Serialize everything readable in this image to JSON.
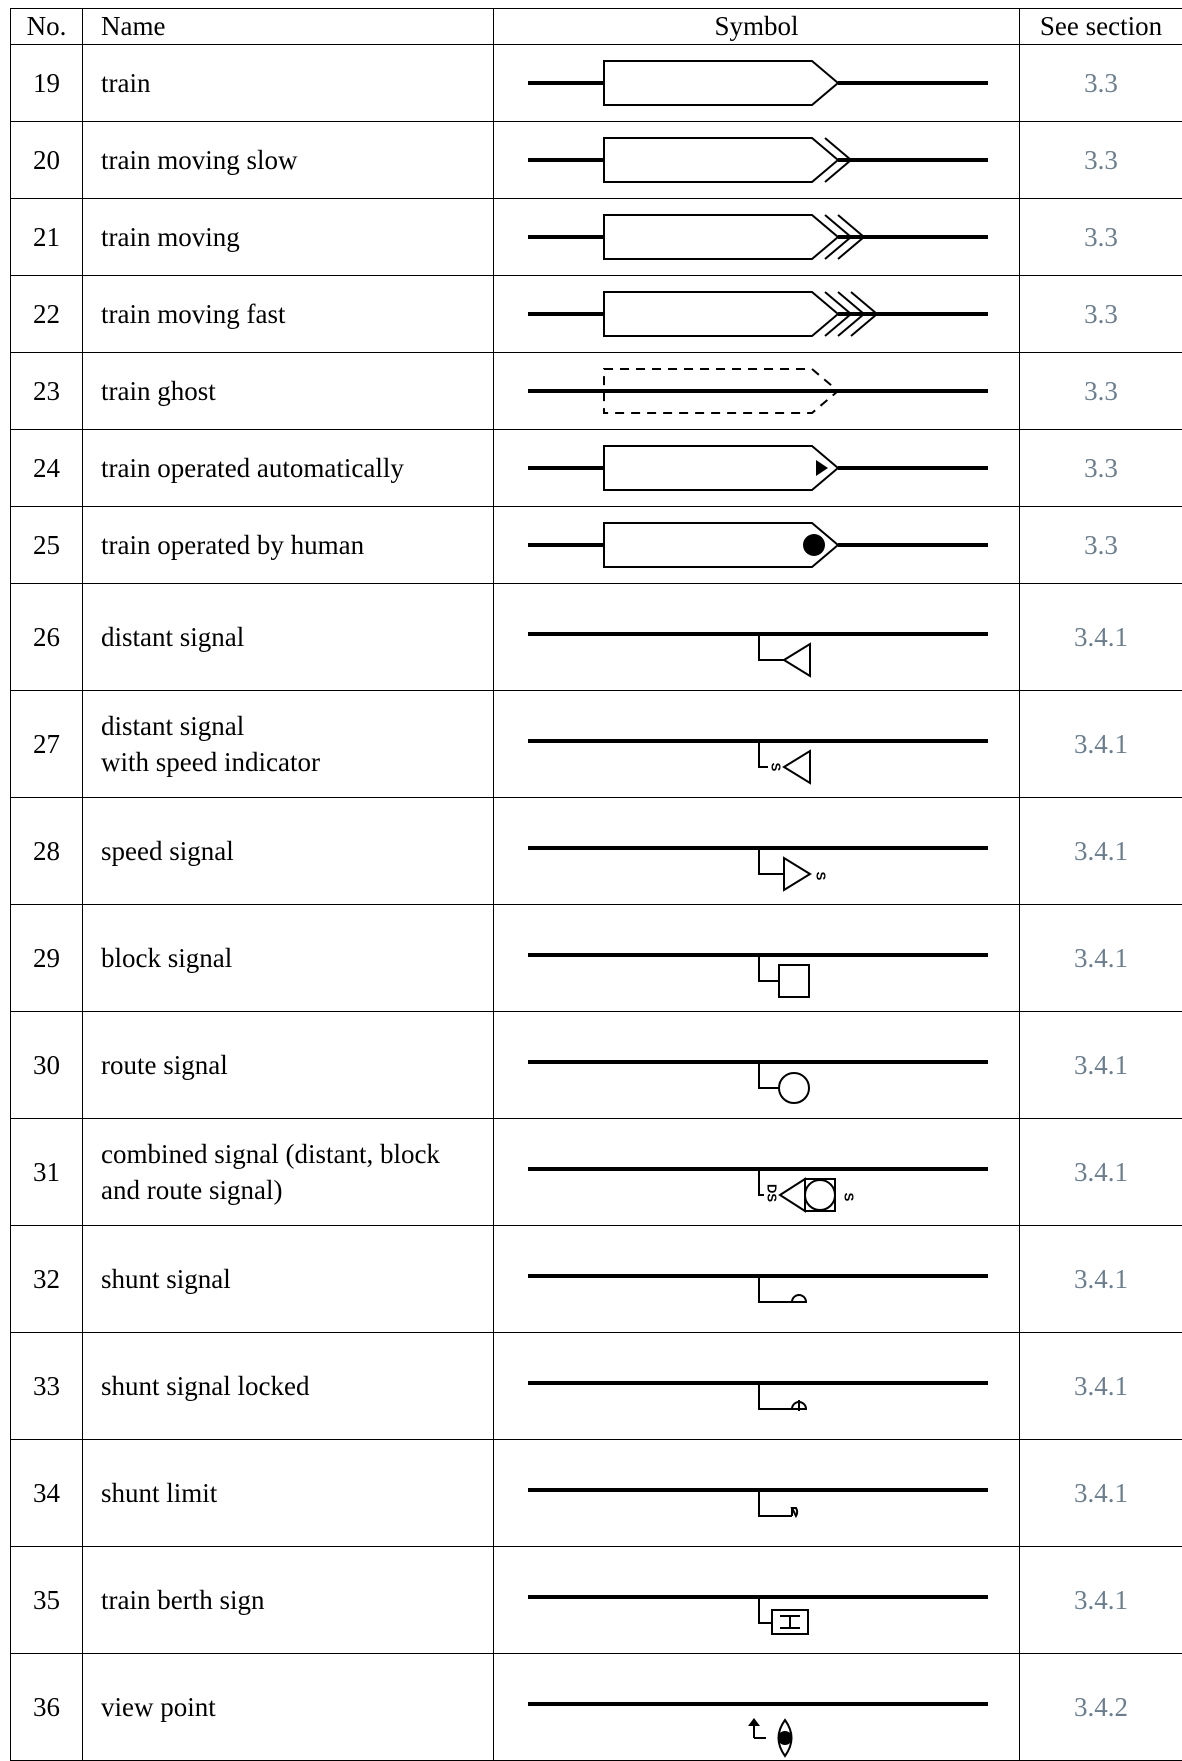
{
  "headers": {
    "no": "No.",
    "name": "Name",
    "symbol": "Symbol",
    "section": "See section"
  },
  "rows": [
    {
      "no": "19",
      "name": "train",
      "symbol": "train",
      "section": "3.3"
    },
    {
      "no": "20",
      "name": "train moving slow",
      "symbol": "train-moving-slow",
      "section": "3.3"
    },
    {
      "no": "21",
      "name": "train moving",
      "symbol": "train-moving",
      "section": "3.3"
    },
    {
      "no": "22",
      "name": "train moving fast",
      "symbol": "train-moving-fast",
      "section": "3.3"
    },
    {
      "no": "23",
      "name": "train ghost",
      "symbol": "train-ghost",
      "section": "3.3"
    },
    {
      "no": "24",
      "name": "train operated automatically",
      "symbol": "train-automatic",
      "section": "3.3"
    },
    {
      "no": "25",
      "name": "train operated by human",
      "symbol": "train-human",
      "section": "3.3"
    },
    {
      "no": "26",
      "name": "distant signal",
      "symbol": "distant-signal",
      "section": "3.4.1"
    },
    {
      "no": "27",
      "name": "distant signal\nwith speed indicator",
      "symbol": "distant-signal-speed",
      "section": "3.4.1"
    },
    {
      "no": "28",
      "name": "speed signal",
      "symbol": "speed-signal",
      "section": "3.4.1"
    },
    {
      "no": "29",
      "name": "block signal",
      "symbol": "block-signal",
      "section": "3.4.1"
    },
    {
      "no": "30",
      "name": "route signal",
      "symbol": "route-signal",
      "section": "3.4.1"
    },
    {
      "no": "31",
      "name": "combined signal (distant, block\nand route signal)",
      "symbol": "combined-signal",
      "section": "3.4.1"
    },
    {
      "no": "32",
      "name": "shunt signal",
      "symbol": "shunt-signal",
      "section": "3.4.1"
    },
    {
      "no": "33",
      "name": "shunt signal locked",
      "symbol": "shunt-signal-locked",
      "section": "3.4.1"
    },
    {
      "no": "34",
      "name": "shunt limit",
      "symbol": "shunt-limit",
      "section": "3.4.1"
    },
    {
      "no": "35",
      "name": "train berth sign",
      "symbol": "train-berth-sign",
      "section": "3.4.1"
    },
    {
      "no": "36",
      "name": "view point",
      "symbol": "view-point",
      "section": "3.4.2"
    }
  ],
  "symbol_text": {
    "speed_letter": "S",
    "distant_speed_letters": "DS"
  }
}
